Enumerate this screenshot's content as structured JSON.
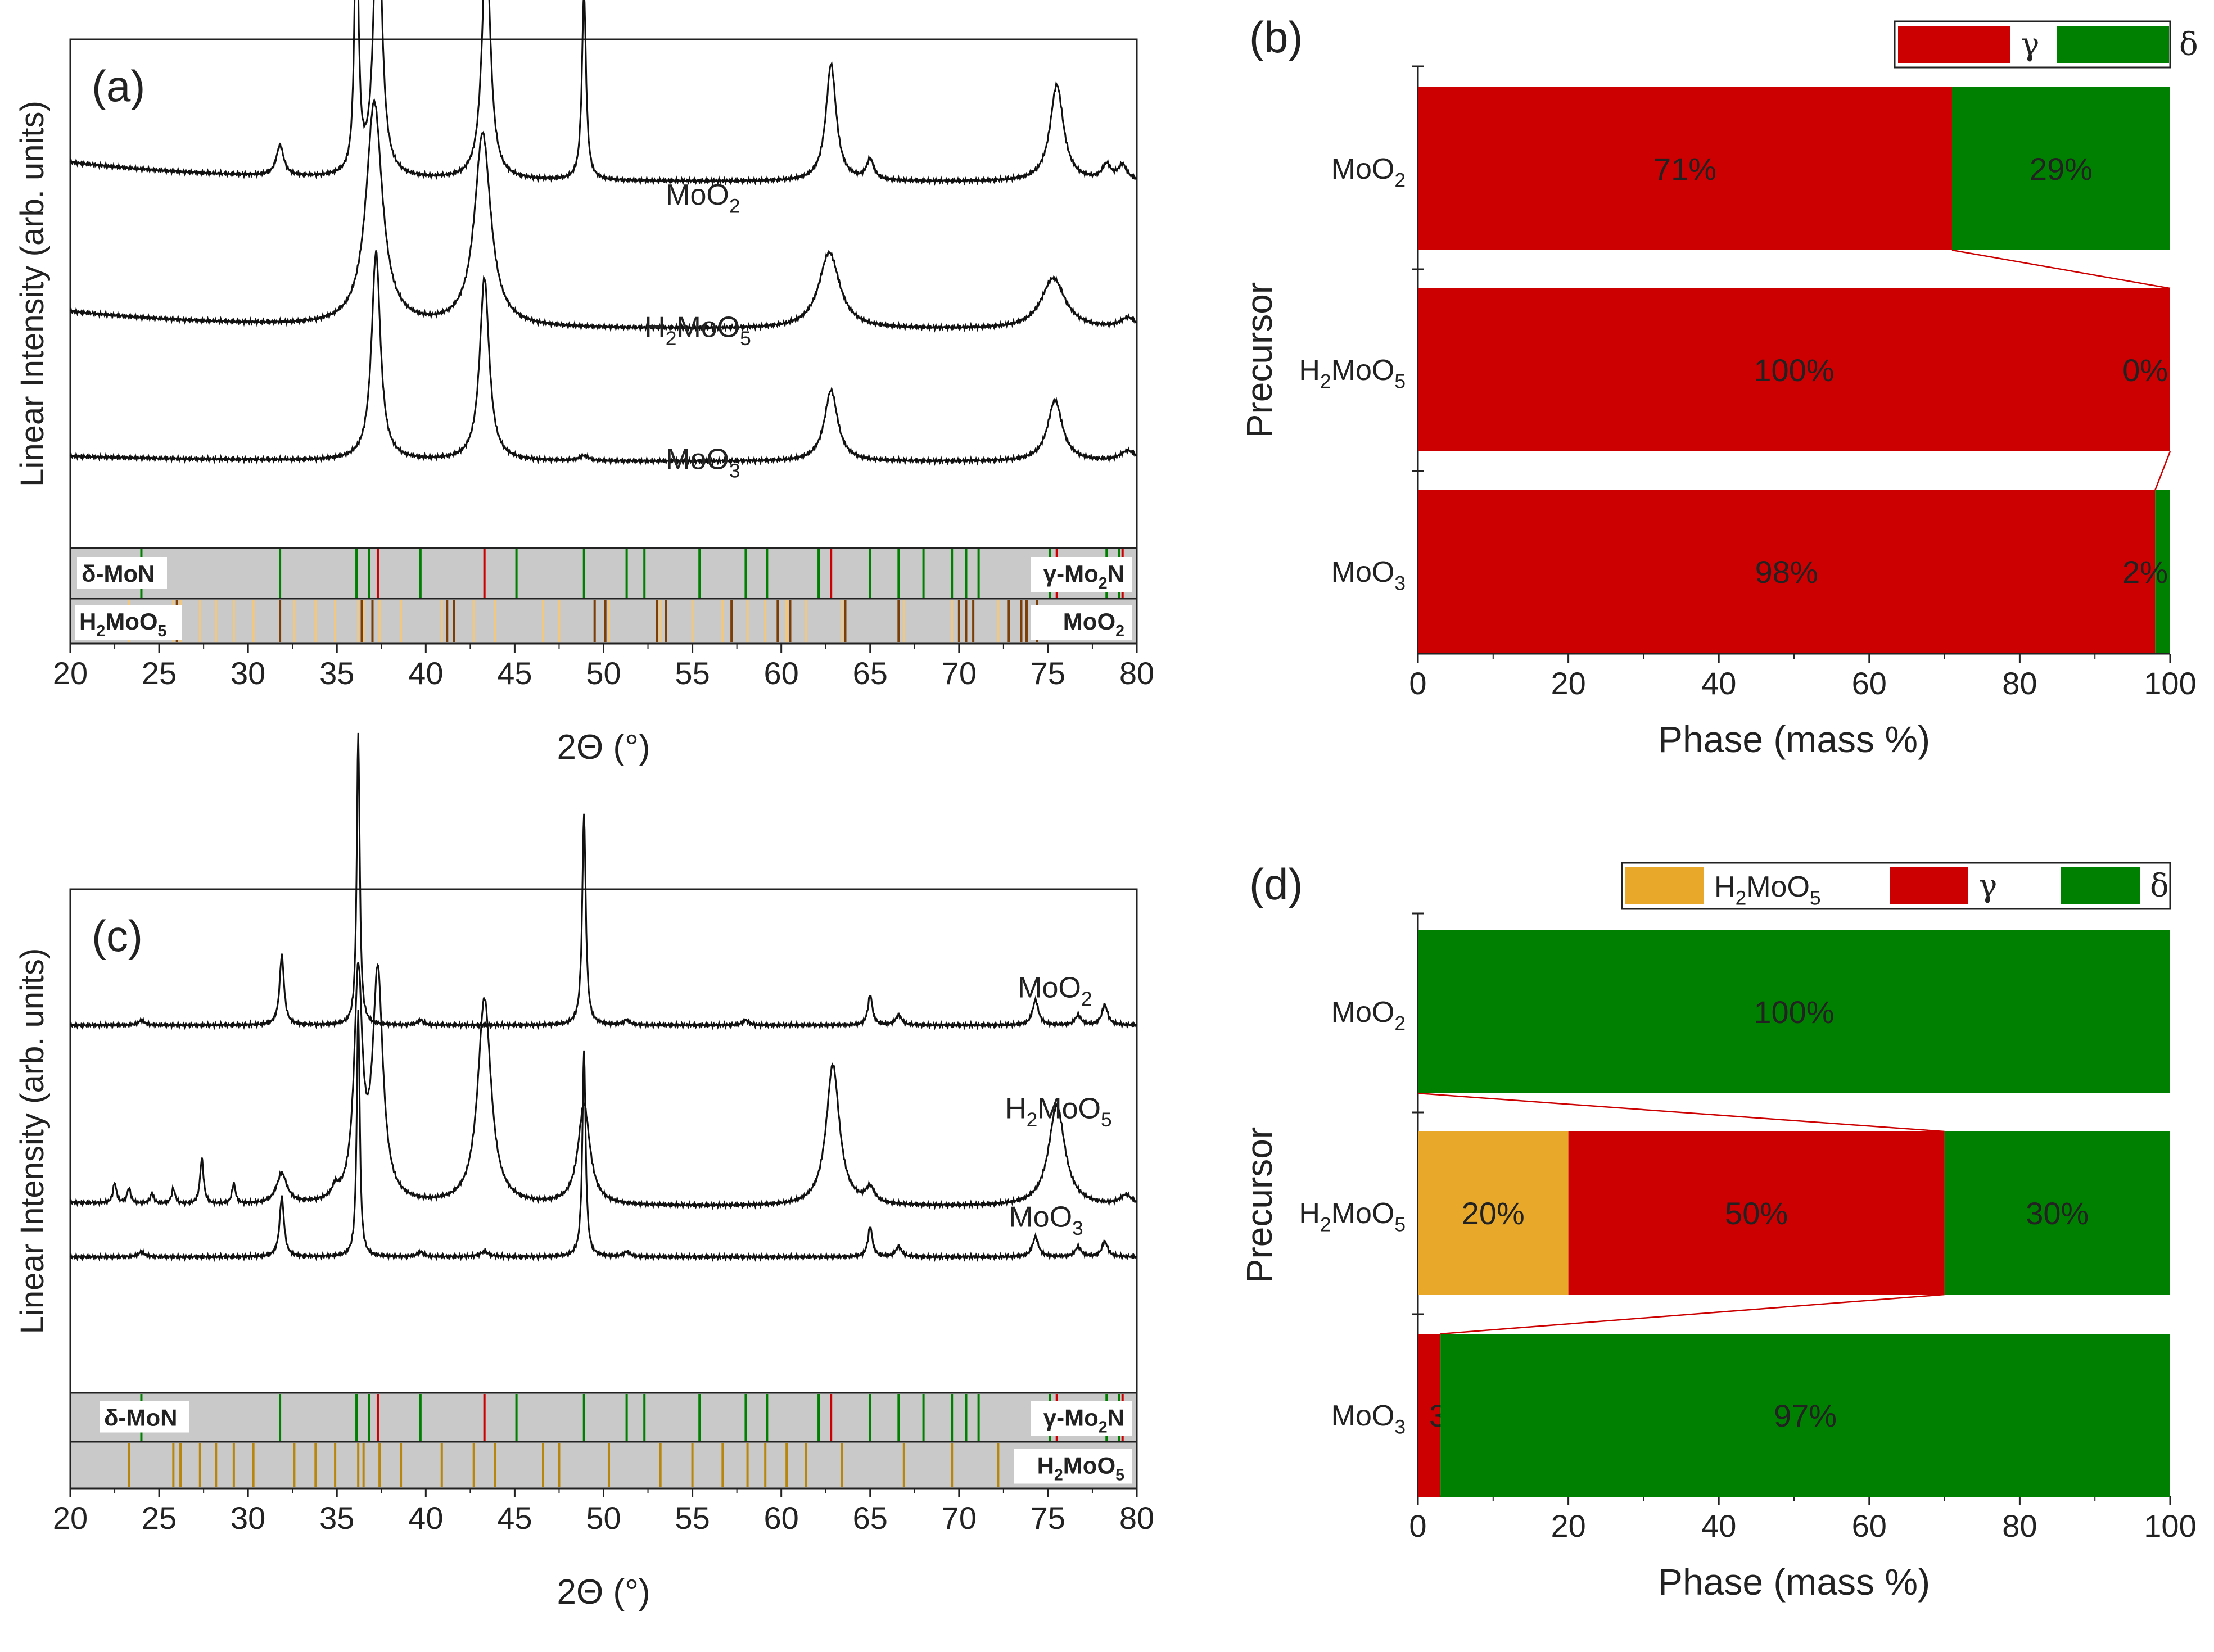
{
  "chart_data": [
    {
      "panel": "(a)",
      "type": "line",
      "xlabel": "2Θ (°)",
      "ylabel": "Linear Intensity (arb. units)",
      "xlim": [
        20,
        80
      ],
      "xticks": [
        20,
        25,
        30,
        35,
        40,
        45,
        50,
        55,
        60,
        65,
        70,
        75,
        80
      ],
      "series": [
        {
          "name": "MoO2",
          "label_main": "MoO",
          "label_sub": "2",
          "label_at": [
            53.5,
            0.675
          ],
          "baseline": 0.72,
          "slope": 0.11,
          "peaks": [
            [
              31.8,
              0.06,
              0.25
            ],
            [
              36.1,
              0.55,
              0.13
            ],
            [
              37.3,
              0.62,
              0.25
            ],
            [
              43.4,
              0.48,
              0.28
            ],
            [
              48.9,
              0.37,
              0.14
            ],
            [
              62.8,
              0.23,
              0.35
            ],
            [
              65.0,
              0.04,
              0.25
            ],
            [
              75.5,
              0.19,
              0.45
            ],
            [
              78.3,
              0.03,
              0.3
            ],
            [
              79.2,
              0.03,
              0.3
            ]
          ]
        },
        {
          "name": "H2MoO5",
          "label_main": "H",
          "label_sub": "2",
          "label_main2": "MoO",
          "label_sub2": "5",
          "label_at": [
            52.3,
            0.415
          ],
          "baseline": 0.43,
          "slope": 0.1,
          "peaks": [
            [
              37.1,
              0.44,
              0.55
            ],
            [
              43.2,
              0.38,
              0.55
            ],
            [
              62.7,
              0.15,
              0.7
            ],
            [
              75.3,
              0.1,
              0.8
            ],
            [
              79.5,
              0.02,
              0.5
            ]
          ]
        },
        {
          "name": "MoO3",
          "label_main": "MoO",
          "label_sub": "3",
          "label_at": [
            53.5,
            0.155
          ],
          "baseline": 0.17,
          "slope": 0.03,
          "peaks": [
            [
              37.2,
              0.41,
              0.3
            ],
            [
              43.3,
              0.36,
              0.32
            ],
            [
              48.9,
              0.01,
              0.3
            ],
            [
              62.8,
              0.14,
              0.45
            ],
            [
              75.4,
              0.12,
              0.5
            ],
            [
              79.5,
              0.02,
              0.5
            ]
          ]
        }
      ],
      "reference_bands": [
        {
          "label_pre": "δ-MoN",
          "label_right_main": "γ-Mo",
          "label_right_sub": "2",
          "label_right_post": "N",
          "green": [
            24.0,
            31.8,
            36.1,
            36.8,
            39.7,
            45.1,
            48.9,
            51.3,
            52.3,
            55.4,
            58.0,
            59.2,
            62.1,
            65.0,
            66.6,
            68.0,
            69.6,
            70.4,
            71.1,
            75.1,
            78.3,
            79.0
          ],
          "red": [
            37.3,
            43.3,
            62.8,
            75.5,
            79.2
          ]
        },
        {
          "label_left_main": "H",
          "label_left_sub": "2",
          "label_left_post": "MoO",
          "label_left_sub2": "5",
          "label_right_main": "MoO",
          "label_right_sub": "2",
          "h2moo5": [
            23.3,
            25.8,
            26.2,
            27.3,
            28.2,
            29.2,
            30.3,
            32.6,
            33.8,
            34.9,
            36.2,
            36.5,
            37.4,
            38.6,
            40.9,
            42.7,
            43.9,
            46.6,
            47.5,
            50.3,
            53.2,
            55.0,
            56.7,
            58.1,
            59.1,
            60.3,
            61.4,
            63.4,
            66.9,
            69.6,
            72.2
          ],
          "moo2": [
            26.0,
            31.8,
            36.4,
            37.0,
            41.2,
            41.6,
            49.5,
            50.1,
            53.0,
            53.5,
            57.2,
            59.8,
            60.5,
            63.6,
            66.6,
            70.0,
            70.4,
            70.8,
            72.8,
            73.5,
            73.8,
            74.4
          ]
        }
      ]
    },
    {
      "panel": "(b)",
      "type": "bar",
      "orientation": "horizontal",
      "stacked": true,
      "xlabel": "Phase (mass %)",
      "ylabel": "Precursor",
      "xlim": [
        0,
        100
      ],
      "xticks": [
        0,
        20,
        40,
        60,
        80,
        100
      ],
      "categories": [
        {
          "main": "MoO",
          "sub": "2"
        },
        {
          "main": "H",
          "sub": "2",
          "main2": "MoO",
          "sub2": "5"
        },
        {
          "main": "MoO",
          "sub": "3"
        }
      ],
      "series": [
        {
          "name": "γ",
          "color": "#cc0000",
          "values": [
            71,
            100,
            98
          ],
          "labels": [
            "71%",
            "100%",
            "98%"
          ]
        },
        {
          "name": "δ",
          "color": "#008000",
          "values": [
            29,
            0,
            2
          ],
          "labels": [
            "29%",
            "0%",
            "2%"
          ]
        }
      ],
      "legend": [
        {
          "name": "γ",
          "color": "#cc0000"
        },
        {
          "name": "δ",
          "color": "#008000"
        }
      ],
      "legend_position": "top-right"
    },
    {
      "panel": "(c)",
      "type": "line",
      "xlabel": "2Θ (°)",
      "ylabel": "Linear Intensity (arb. units)",
      "xlim": [
        20,
        80
      ],
      "xticks": [
        20,
        25,
        30,
        35,
        40,
        45,
        50,
        55,
        60,
        65,
        70,
        75,
        80
      ],
      "series": [
        {
          "name": "MoO2",
          "label_main": "MoO",
          "label_sub": "2",
          "label_at": [
            73.3,
            0.785
          ],
          "baseline": 0.73,
          "slope": 0.0,
          "peaks": [
            [
              24.0,
              0.01,
              0.2
            ],
            [
              31.9,
              0.14,
              0.15
            ],
            [
              36.2,
              0.58,
              0.1
            ],
            [
              39.7,
              0.01,
              0.2
            ],
            [
              48.9,
              0.42,
              0.12
            ],
            [
              51.3,
              0.01,
              0.2
            ],
            [
              58.0,
              0.01,
              0.2
            ],
            [
              65.0,
              0.06,
              0.15
            ],
            [
              66.6,
              0.02,
              0.2
            ],
            [
              74.3,
              0.05,
              0.2
            ],
            [
              76.7,
              0.02,
              0.2
            ],
            [
              78.2,
              0.04,
              0.2
            ]
          ]
        },
        {
          "name": "H2MoO5",
          "label_main": "H",
          "label_sub": "2",
          "label_main2": "MoO",
          "label_sub2": "5",
          "label_at": [
            72.6,
            0.545
          ],
          "baseline": 0.37,
          "slope": 0.03,
          "peaks": [
            [
              22.5,
              0.04,
              0.12
            ],
            [
              23.3,
              0.03,
              0.12
            ],
            [
              24.6,
              0.02,
              0.12
            ],
            [
              25.8,
              0.03,
              0.12
            ],
            [
              27.4,
              0.09,
              0.12
            ],
            [
              29.2,
              0.04,
              0.12
            ],
            [
              31.9,
              0.06,
              0.35
            ],
            [
              34.9,
              0.02,
              0.2
            ],
            [
              36.2,
              0.44,
              0.28
            ],
            [
              37.3,
              0.45,
              0.35
            ],
            [
              43.3,
              0.41,
              0.45
            ],
            [
              48.9,
              0.2,
              0.4
            ],
            [
              62.9,
              0.28,
              0.45
            ],
            [
              65.0,
              0.03,
              0.3
            ],
            [
              75.5,
              0.2,
              0.55
            ],
            [
              79.4,
              0.02,
              0.4
            ]
          ]
        },
        {
          "name": "MoO3",
          "label_main": "MoO",
          "label_sub": "3",
          "label_at": [
            72.8,
            0.33
          ],
          "baseline": 0.27,
          "slope": 0.0,
          "peaks": [
            [
              24.0,
              0.01,
              0.2
            ],
            [
              31.9,
              0.12,
              0.15
            ],
            [
              36.2,
              0.49,
              0.1
            ],
            [
              39.7,
              0.01,
              0.2
            ],
            [
              43.3,
              0.01,
              0.3
            ],
            [
              48.9,
              0.41,
              0.11
            ],
            [
              51.3,
              0.01,
              0.2
            ],
            [
              65.0,
              0.06,
              0.15
            ],
            [
              66.6,
              0.02,
              0.2
            ],
            [
              74.3,
              0.04,
              0.2
            ],
            [
              76.7,
              0.02,
              0.2
            ],
            [
              78.2,
              0.03,
              0.2
            ]
          ]
        }
      ],
      "reference_bands": [
        {
          "label_pre": "δ-MoN",
          "label_right_main": "γ-Mo",
          "label_right_sub": "2",
          "label_right_post": "N",
          "green": [
            24.0,
            31.8,
            36.1,
            36.8,
            39.7,
            45.1,
            48.9,
            51.3,
            52.3,
            55.4,
            58.0,
            59.2,
            62.1,
            65.0,
            66.6,
            68.0,
            69.6,
            70.4,
            71.1,
            75.1,
            78.3,
            79.0
          ],
          "red": [
            37.3,
            43.3,
            62.8,
            75.5,
            79.2
          ]
        },
        {
          "label_right_main": "H",
          "label_right_sub": "2",
          "label_right_post": "MoO",
          "label_right_sub2": "5",
          "h2moo5": [
            23.3,
            25.8,
            26.2,
            27.3,
            28.2,
            29.2,
            30.3,
            32.6,
            33.8,
            34.9,
            36.2,
            36.5,
            37.4,
            38.6,
            40.9,
            42.7,
            43.9,
            46.6,
            47.5,
            50.3,
            53.2,
            55.0,
            56.7,
            58.1,
            59.1,
            60.3,
            61.4,
            63.4,
            66.9,
            69.6,
            72.2
          ]
        }
      ]
    },
    {
      "panel": "(d)",
      "type": "bar",
      "orientation": "horizontal",
      "stacked": true,
      "xlabel": "Phase (mass %)",
      "ylabel": "Precursor",
      "xlim": [
        0,
        100
      ],
      "xticks": [
        0,
        20,
        40,
        60,
        80,
        100
      ],
      "categories": [
        {
          "main": "MoO",
          "sub": "2"
        },
        {
          "main": "H",
          "sub": "2",
          "main2": "MoO",
          "sub2": "5"
        },
        {
          "main": "MoO",
          "sub": "3"
        }
      ],
      "series": [
        {
          "name": "H2MoO5",
          "color": "#e8a92a",
          "values": [
            0,
            20,
            0
          ],
          "labels": [
            "",
            "20%",
            ""
          ]
        },
        {
          "name": "γ",
          "color": "#cc0000",
          "values": [
            0,
            50,
            3
          ],
          "labels": [
            "",
            "50%",
            "3%"
          ]
        },
        {
          "name": "δ",
          "color": "#008000",
          "values": [
            100,
            30,
            97
          ],
          "labels": [
            "100%",
            "30%",
            "97%"
          ]
        }
      ],
      "legend": [
        {
          "name": "H2MoO5",
          "main": "H",
          "sub": "2",
          "main2": "MoO",
          "sub2": "5",
          "color": "#e8a92a"
        },
        {
          "name": "γ",
          "color": "#cc0000"
        },
        {
          "name": "δ",
          "color": "#008000"
        }
      ],
      "legend_position": "top-right"
    }
  ],
  "colors": {
    "gamma": "#cc0000",
    "delta": "#008000",
    "h2moo5_bar": "#e8a92a",
    "h2moo5_ref_a": "#f2c77e",
    "h2moo5_ref_c": "#b8860b",
    "moo2_ref": "#7a3e06",
    "band": "#c9c9c9"
  }
}
